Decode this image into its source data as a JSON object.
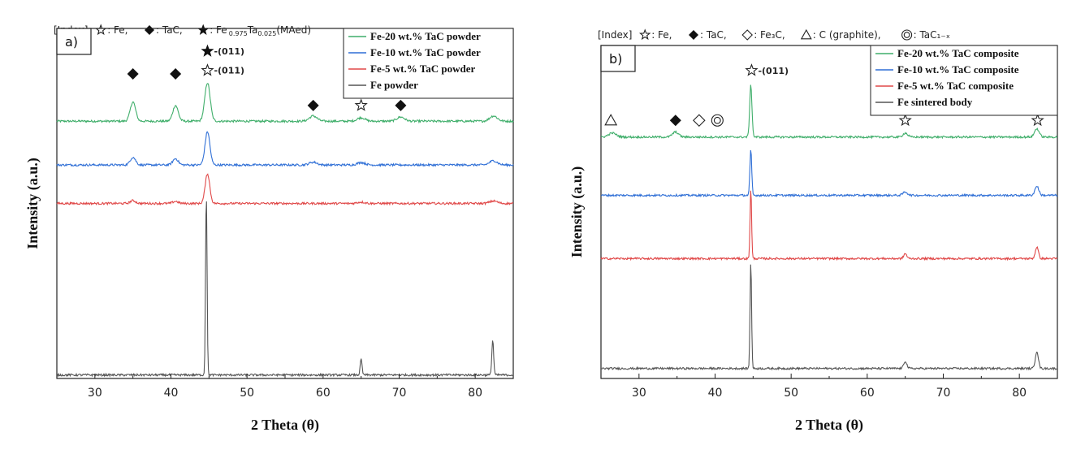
{
  "panels": [
    {
      "id": "a",
      "panel_label": "a)",
      "index_parts": [
        {
          "text": "[Index] ",
          "sym": null
        },
        {
          "text": ": Fe,  ",
          "sym": "star-open"
        },
        {
          "text": ": TaC,  ",
          "sym": "diamond"
        },
        {
          "text": ": Fe",
          "sym": "star-filled"
        }
      ],
      "index_formula": {
        "sub1": "0.975",
        "mid": "Ta",
        "sub2": "0.025",
        "tail": "(MAed)"
      },
      "chart_data": {
        "type": "line",
        "xlabel": "2 Theta (θ)",
        "ylabel": "Intensity (a.u.)",
        "xlim": [
          25,
          85
        ],
        "xticks": [
          30,
          40,
          50,
          60,
          70,
          80
        ],
        "y_ticks_shown": false,
        "grid": false,
        "legend_position": "top-right",
        "series": [
          {
            "name": "Fe-20 wt.% TaC powder",
            "color": "#3fae6a",
            "baseline": 0.735,
            "peaks": [
              [
                35.0,
                0.055,
                0.35
              ],
              [
                40.6,
                0.045,
                0.35
              ],
              [
                44.8,
                0.11,
                0.35
              ],
              [
                58.7,
                0.015,
                0.5
              ],
              [
                65.0,
                0.01,
                0.5
              ],
              [
                70.2,
                0.012,
                0.5
              ],
              [
                82.4,
                0.015,
                0.5
              ]
            ]
          },
          {
            "name": "Fe-10 wt.% TaC powder",
            "color": "#2f6fd6",
            "baseline": 0.61,
            "peaks": [
              [
                35.0,
                0.022,
                0.35
              ],
              [
                40.6,
                0.018,
                0.35
              ],
              [
                44.8,
                0.095,
                0.32
              ],
              [
                58.7,
                0.008,
                0.5
              ],
              [
                65.0,
                0.007,
                0.5
              ],
              [
                82.4,
                0.012,
                0.5
              ]
            ]
          },
          {
            "name": "Fe-5 wt.% TaC powder",
            "color": "#e04848",
            "baseline": 0.5,
            "peaks": [
              [
                35.0,
                0.008,
                0.35
              ],
              [
                40.6,
                0.006,
                0.35
              ],
              [
                44.8,
                0.085,
                0.3
              ],
              [
                65.0,
                0.004,
                0.5
              ],
              [
                82.4,
                0.007,
                0.5
              ]
            ]
          },
          {
            "name": "Fe powder",
            "color": "#555555",
            "baseline": 0.01,
            "peaks": [
              [
                44.65,
                0.52,
                0.1
              ],
              [
                65.0,
                0.045,
                0.12
              ],
              [
                82.3,
                0.1,
                0.12
              ]
            ]
          }
        ],
        "annotations": [
          {
            "x": 35.0,
            "y": 0.87,
            "sym": "diamond",
            "label": ""
          },
          {
            "x": 40.6,
            "y": 0.87,
            "sym": "diamond",
            "label": ""
          },
          {
            "x": 44.8,
            "y": 0.935,
            "sym": "star-filled",
            "label": "-(011)"
          },
          {
            "x": 44.8,
            "y": 0.88,
            "sym": "star-open",
            "label": "-(011)"
          },
          {
            "x": 58.7,
            "y": 0.78,
            "sym": "diamond",
            "label": ""
          },
          {
            "x": 65.0,
            "y": 0.78,
            "sym": "star-open",
            "label": ""
          },
          {
            "x": 70.2,
            "y": 0.78,
            "sym": "diamond",
            "label": ""
          },
          {
            "x": 82.9,
            "y": 0.875,
            "sym": "star-filled",
            "label": ""
          },
          {
            "x": 82.9,
            "y": 0.825,
            "sym": "star-open",
            "label": ""
          }
        ]
      }
    },
    {
      "id": "b",
      "panel_label": "b)",
      "index_parts": [
        {
          "text": "[Index] ",
          "sym": null
        },
        {
          "text": ": Fe,  ",
          "sym": "star-open"
        },
        {
          "text": ": TaC,  ",
          "sym": "diamond"
        },
        {
          "text": ": Fe₃C,  ",
          "sym": "diamond-open"
        },
        {
          "text": ": C (graphite),  ",
          "sym": "triangle-open"
        },
        {
          "text": ": TaC₁₋ₓ",
          "sym": "double-circle"
        }
      ],
      "index_formula": null,
      "chart_data": {
        "type": "line",
        "xlabel": "2 Theta (θ)",
        "ylabel": "Intensity (a.u.)",
        "xlim": [
          25,
          85
        ],
        "xticks": [
          30,
          40,
          50,
          60,
          70,
          80
        ],
        "y_ticks_shown": false,
        "grid": false,
        "legend_position": "top-right",
        "series": [
          {
            "name": "Fe-20 wt.% TaC composite",
            "color": "#3fae6a",
            "baseline": 0.725,
            "peaks": [
              [
                26.5,
                0.012,
                0.5
              ],
              [
                34.8,
                0.015,
                0.4
              ],
              [
                44.7,
                0.155,
                0.15
              ],
              [
                65.0,
                0.012,
                0.3
              ],
              [
                82.3,
                0.025,
                0.3
              ]
            ]
          },
          {
            "name": "Fe-10 wt.% TaC composite",
            "color": "#2f6fd6",
            "baseline": 0.55,
            "peaks": [
              [
                44.7,
                0.135,
                0.12
              ],
              [
                65.0,
                0.01,
                0.3
              ],
              [
                82.3,
                0.028,
                0.25
              ]
            ]
          },
          {
            "name": "Fe-5 wt.% TaC composite",
            "color": "#e04848",
            "baseline": 0.36,
            "peaks": [
              [
                44.7,
                0.21,
                0.1
              ],
              [
                65.0,
                0.015,
                0.2
              ],
              [
                82.3,
                0.035,
                0.2
              ]
            ]
          },
          {
            "name": "Fe sintered body",
            "color": "#555555",
            "baseline": 0.03,
            "peaks": [
              [
                44.7,
                0.32,
                0.1
              ],
              [
                65.0,
                0.022,
                0.2
              ],
              [
                82.3,
                0.052,
                0.2
              ]
            ]
          }
        ],
        "annotations": [
          {
            "x": 26.3,
            "y": 0.775,
            "sym": "triangle-open",
            "label": ""
          },
          {
            "x": 34.8,
            "y": 0.775,
            "sym": "diamond",
            "label": ""
          },
          {
            "x": 37.9,
            "y": 0.775,
            "sym": "diamond-open",
            "label": ""
          },
          {
            "x": 40.3,
            "y": 0.775,
            "sym": "double-circle",
            "label": ""
          },
          {
            "x": 44.8,
            "y": 0.925,
            "sym": "star-open",
            "label": "-(011)"
          },
          {
            "x": 65.0,
            "y": 0.775,
            "sym": "star-open",
            "label": ""
          },
          {
            "x": 82.4,
            "y": 0.775,
            "sym": "star-open",
            "label": ""
          }
        ]
      }
    }
  ]
}
